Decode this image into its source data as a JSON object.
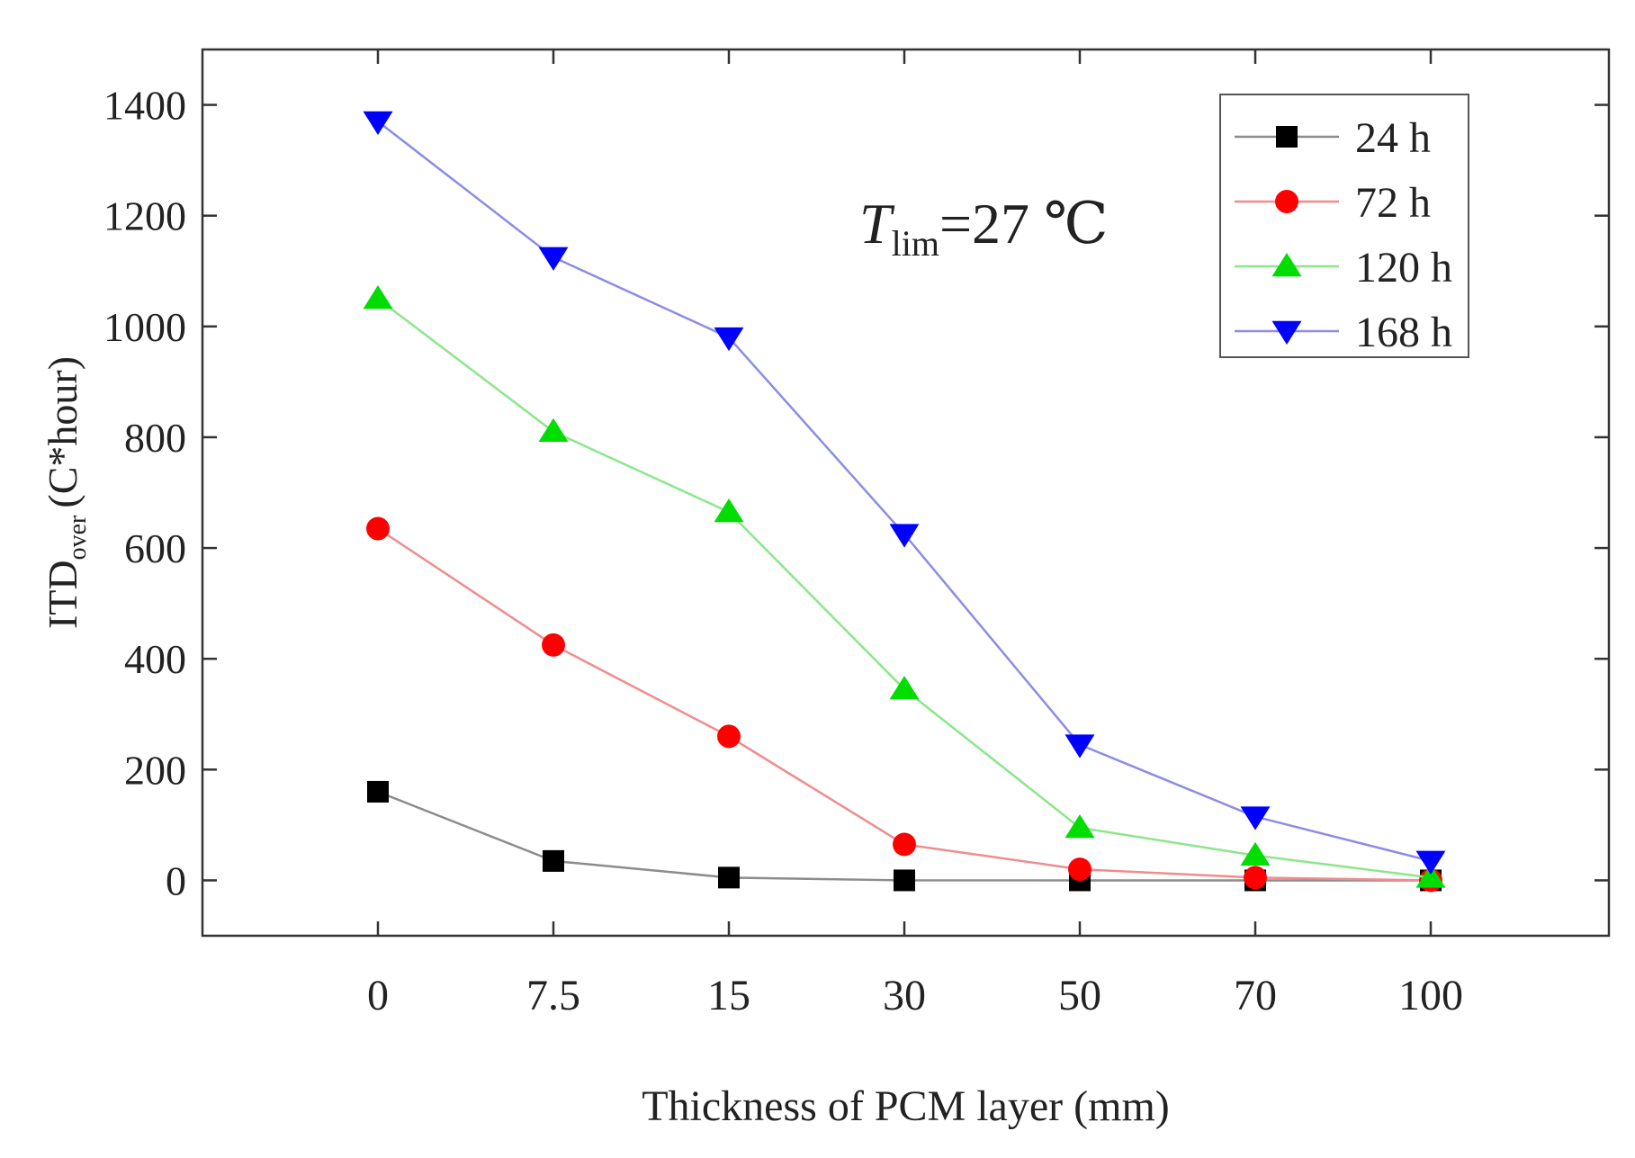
{
  "chart_data": {
    "type": "line",
    "title": "",
    "xlabel": "Thickness of PCM layer (mm)",
    "ylabel": {
      "main": "ITD",
      "subscript": "over",
      "unit": "(C*hour)"
    },
    "categories": [
      "0",
      "7.5",
      "15",
      "30",
      "50",
      "70",
      "100"
    ],
    "ylim": [
      -100,
      1500
    ],
    "yticks": [
      0,
      200,
      400,
      600,
      800,
      1000,
      1200,
      1400
    ],
    "grid": false,
    "legend_position": "top-right",
    "annotation": {
      "symbol": "T",
      "subscript": "lim",
      "text": "=27 ℃"
    },
    "series": [
      {
        "name": "24 h",
        "color": "#000000",
        "line_color": "#8c8c8c",
        "marker": "square",
        "values": [
          160,
          35,
          5,
          0,
          0,
          0,
          0
        ]
      },
      {
        "name": "72 h",
        "color": "#ff0000",
        "line_color": "#f08c8c",
        "marker": "circle",
        "values": [
          635,
          425,
          260,
          65,
          20,
          5,
          0
        ]
      },
      {
        "name": "120 h",
        "color": "#00dd00",
        "line_color": "#8ce68c",
        "marker": "triangle-up",
        "values": [
          1050,
          810,
          665,
          345,
          95,
          45,
          5
        ]
      },
      {
        "name": "168 h",
        "color": "#0000ff",
        "line_color": "#8c8ce6",
        "marker": "triangle-down",
        "values": [
          1370,
          1125,
          980,
          625,
          245,
          115,
          35
        ]
      }
    ]
  }
}
